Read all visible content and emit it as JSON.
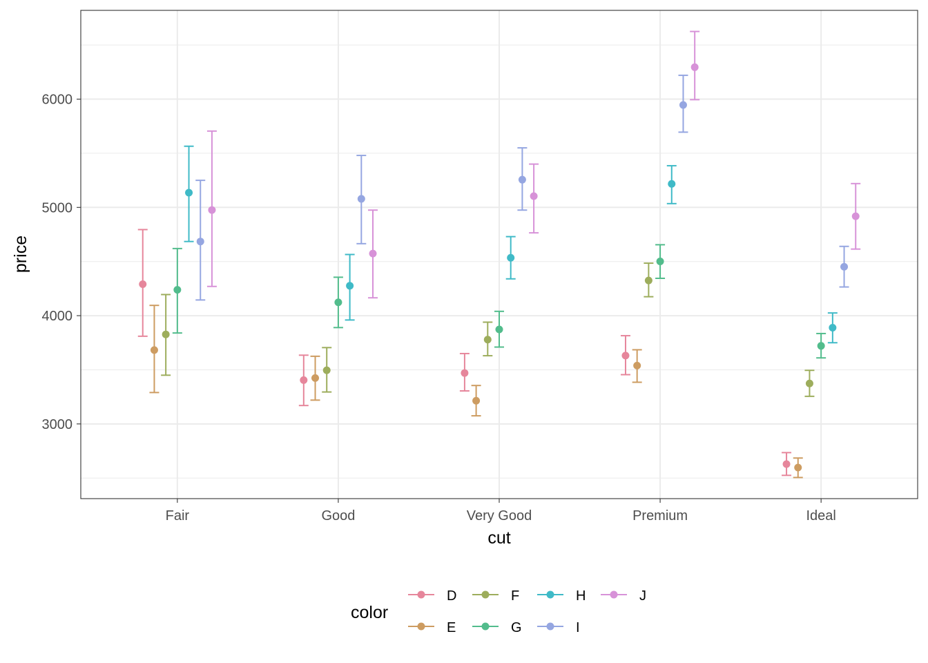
{
  "chart_data": {
    "type": "scatter",
    "geometry": "point-with-errorbars",
    "xlabel": "cut",
    "ylabel": "price",
    "categories": [
      "Fair",
      "Good",
      "Very Good",
      "Premium",
      "Ideal"
    ],
    "y_ticks": [
      3000,
      4000,
      5000,
      6000
    ],
    "ylim": [
      2310,
      6820
    ],
    "grid": true,
    "legend": {
      "title": "color",
      "position": "bottom"
    },
    "series": [
      {
        "name": "D",
        "color": "#E6869B",
        "values": [
          4291,
          3405,
          3470,
          3631,
          2629
        ],
        "lower": [
          3810,
          3170,
          3305,
          3455,
          2525
        ],
        "upper": [
          4795,
          3635,
          3650,
          3815,
          2735
        ]
      },
      {
        "name": "E",
        "color": "#CD9C61",
        "values": [
          3682,
          3424,
          3214,
          3539,
          2597
        ],
        "lower": [
          3290,
          3220,
          3075,
          3385,
          2505
        ],
        "upper": [
          4095,
          3625,
          3355,
          3685,
          2685
        ]
      },
      {
        "name": "F",
        "color": "#9DAD5C",
        "values": [
          3827,
          3496,
          3779,
          4325,
          3374
        ],
        "lower": [
          3450,
          3295,
          3630,
          4175,
          3255
        ],
        "upper": [
          4195,
          3705,
          3940,
          4485,
          3495
        ]
      },
      {
        "name": "G",
        "color": "#52BC8C",
        "values": [
          4239,
          4123,
          3873,
          4501,
          3721
        ],
        "lower": [
          3840,
          3890,
          3710,
          4345,
          3610
        ],
        "upper": [
          4620,
          4355,
          4040,
          4655,
          3835
        ]
      },
      {
        "name": "H",
        "color": "#3FBAC7",
        "values": [
          5136,
          4276,
          4535,
          5217,
          3889
        ],
        "lower": [
          4685,
          3960,
          4340,
          5035,
          3750
        ],
        "upper": [
          5565,
          4565,
          4730,
          5385,
          4025
        ]
      },
      {
        "name": "I",
        "color": "#95A6E1",
        "values": [
          4685,
          5079,
          5256,
          5946,
          4452
        ],
        "lower": [
          4145,
          4665,
          4975,
          5695,
          4265
        ],
        "upper": [
          5250,
          5480,
          5550,
          6220,
          4640
        ]
      },
      {
        "name": "J",
        "color": "#D792D8",
        "values": [
          4976,
          4574,
          5104,
          6295,
          4918
        ],
        "lower": [
          4270,
          4165,
          4765,
          5995,
          4615
        ],
        "upper": [
          5705,
          4975,
          5400,
          6625,
          5220
        ]
      }
    ]
  }
}
